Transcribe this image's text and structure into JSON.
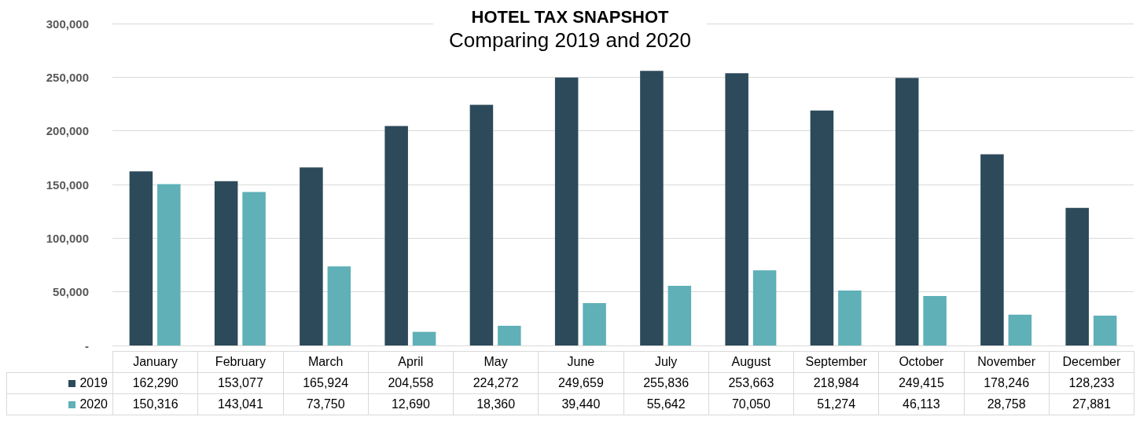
{
  "chart_data": {
    "type": "bar",
    "title": "HOTEL TAX SNAPSHOT",
    "subtitle": "Comparing 2019 and 2020",
    "categories": [
      "January",
      "February",
      "March",
      "April",
      "May",
      "June",
      "July",
      "August",
      "September",
      "October",
      "November",
      "December"
    ],
    "series": [
      {
        "name": "2019",
        "color": "#2c4a5a",
        "values": [
          162290,
          153077,
          165924,
          204558,
          224272,
          249659,
          255836,
          253663,
          218984,
          249415,
          178246,
          128233
        ],
        "value_labels": [
          "162,290",
          "153,077",
          "165,924",
          "204,558",
          "224,272",
          "249,659",
          "255,836",
          "253,663",
          "218,984",
          "249,415",
          "178,246",
          "128,233"
        ]
      },
      {
        "name": "2020",
        "color": "#5fb0b7",
        "values": [
          150316,
          143041,
          73750,
          12690,
          18360,
          39440,
          55642,
          70050,
          51274,
          46113,
          28758,
          27881
        ],
        "value_labels": [
          "150,316",
          "143,041",
          "73,750",
          "12,690",
          "18,360",
          "39,440",
          "55,642",
          "70,050",
          "51,274",
          "46,113",
          "28,758",
          "27,881"
        ]
      }
    ],
    "ylim": [
      0,
      300000
    ],
    "yticks": [
      {
        "value": 0,
        "label": "-"
      },
      {
        "value": 50000,
        "label": "50,000"
      },
      {
        "value": 100000,
        "label": "100,000"
      },
      {
        "value": 150000,
        "label": "150,000"
      },
      {
        "value": 200000,
        "label": "200,000"
      },
      {
        "value": 250000,
        "label": "250,000"
      },
      {
        "value": 300000,
        "label": "300,000"
      }
    ],
    "grid": "y",
    "legend": "bottom"
  }
}
